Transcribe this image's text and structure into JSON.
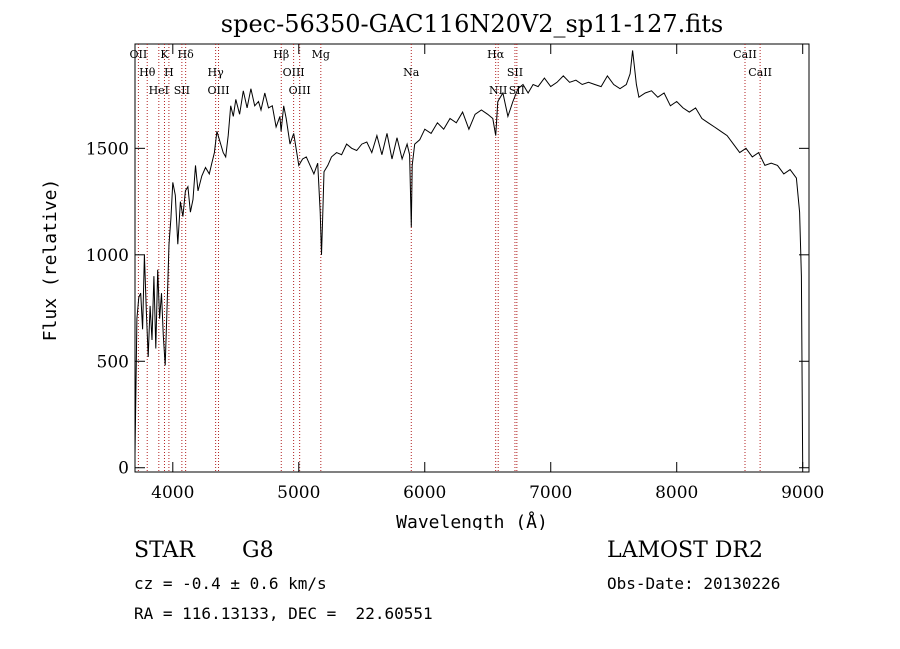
{
  "chart_data": {
    "type": "line",
    "title": "spec-56350-GAC116N20V2_sp11-127.fits",
    "xlabel": "Wavelength (Å)",
    "ylabel": "Flux (relative)",
    "xlim": [
      3700,
      9050
    ],
    "ylim": [
      -20,
      1990
    ],
    "x_ticks": [
      4000,
      5000,
      6000,
      7000,
      8000,
      9000
    ],
    "x_tick_labels": [
      "4000",
      "5000",
      "6000",
      "7000",
      "8000",
      "9000"
    ],
    "y_ticks": [
      0,
      500,
      1000,
      1500
    ],
    "y_tick_labels": [
      "0",
      "500",
      "1000",
      "1500"
    ],
    "grid": false,
    "line_color": "#000000",
    "marker_color": "#b22222",
    "series": [
      {
        "x": [
          3700,
          3715,
          3730,
          3745,
          3760,
          3775,
          3790,
          3805,
          3820,
          3835,
          3850,
          3865,
          3880,
          3895,
          3910,
          3925,
          3940,
          3955,
          3970,
          3985,
          4000,
          4020,
          4040,
          4060,
          4080,
          4100,
          4120,
          4140,
          4160,
          4180,
          4200,
          4230,
          4260,
          4290,
          4310,
          4330,
          4350,
          4380,
          4400,
          4420,
          4440,
          4460,
          4480,
          4500,
          4530,
          4560,
          4590,
          4620,
          4650,
          4680,
          4700,
          4730,
          4760,
          4790,
          4820,
          4850,
          4860,
          4880,
          4900,
          4930,
          4960,
          5000,
          5030,
          5060,
          5090,
          5120,
          5150,
          5170,
          5180,
          5190,
          5200,
          5230,
          5260,
          5300,
          5340,
          5380,
          5420,
          5460,
          5500,
          5540,
          5580,
          5620,
          5660,
          5700,
          5740,
          5780,
          5820,
          5860,
          5880,
          5893,
          5900,
          5920,
          5960,
          6000,
          6050,
          6100,
          6150,
          6200,
          6250,
          6300,
          6350,
          6400,
          6450,
          6500,
          6540,
          6563,
          6580,
          6620,
          6660,
          6700,
          6740,
          6780,
          6820,
          6860,
          6900,
          6950,
          7000,
          7050,
          7100,
          7150,
          7200,
          7250,
          7300,
          7350,
          7400,
          7450,
          7500,
          7550,
          7600,
          7630,
          7650,
          7680,
          7700,
          7750,
          7800,
          7850,
          7900,
          7950,
          8000,
          8050,
          8100,
          8150,
          8200,
          8250,
          8300,
          8350,
          8400,
          8450,
          8500,
          8550,
          8600,
          8650,
          8700,
          8750,
          8800,
          8850,
          8900,
          8950,
          8975,
          8990,
          9000
        ],
        "y": [
          60,
          700,
          800,
          820,
          650,
          1000,
          740,
          520,
          760,
          600,
          900,
          560,
          930,
          700,
          820,
          620,
          480,
          760,
          1050,
          1170,
          1340,
          1280,
          1050,
          1250,
          1180,
          1300,
          1320,
          1200,
          1260,
          1420,
          1300,
          1370,
          1410,
          1380,
          1430,
          1480,
          1580,
          1520,
          1480,
          1460,
          1560,
          1700,
          1650,
          1730,
          1660,
          1770,
          1690,
          1780,
          1700,
          1720,
          1680,
          1760,
          1690,
          1700,
          1600,
          1650,
          1580,
          1700,
          1640,
          1520,
          1570,
          1420,
          1450,
          1460,
          1420,
          1380,
          1430,
          1200,
          1000,
          1180,
          1390,
          1420,
          1460,
          1480,
          1470,
          1520,
          1500,
          1490,
          1520,
          1530,
          1480,
          1560,
          1470,
          1570,
          1450,
          1550,
          1450,
          1520,
          1470,
          1130,
          1420,
          1520,
          1540,
          1590,
          1570,
          1620,
          1590,
          1640,
          1620,
          1670,
          1590,
          1660,
          1680,
          1660,
          1640,
          1560,
          1720,
          1760,
          1650,
          1720,
          1780,
          1800,
          1760,
          1800,
          1790,
          1830,
          1790,
          1810,
          1840,
          1810,
          1820,
          1800,
          1810,
          1800,
          1790,
          1840,
          1800,
          1780,
          1800,
          1850,
          1960,
          1800,
          1740,
          1760,
          1770,
          1740,
          1760,
          1700,
          1720,
          1690,
          1670,
          1690,
          1640,
          1620,
          1600,
          1580,
          1560,
          1520,
          1480,
          1500,
          1460,
          1480,
          1420,
          1430,
          1420,
          1380,
          1400,
          1360,
          1200,
          900,
          0
        ]
      }
    ],
    "lines": [
      {
        "label": "OII",
        "x": 3727
      },
      {
        "label": "Hθ",
        "x": 3797
      },
      {
        "label": "HeI",
        "x": 3889
      },
      {
        "label": "K",
        "x": 3934
      },
      {
        "label": "H",
        "x": 3969
      },
      {
        "label": "SII",
        "x": 4072
      },
      {
        "label": "Hδ",
        "x": 4102
      },
      {
        "label": "Hγ",
        "x": 4340
      },
      {
        "label": "OIII",
        "x": 4363
      },
      {
        "label": "Hβ",
        "x": 4861
      },
      {
        "label": "OIII",
        "x": 4959
      },
      {
        "label": "OIII",
        "x": 5007
      },
      {
        "label": "Mg",
        "x": 5175
      },
      {
        "label": "Na",
        "x": 5893
      },
      {
        "label": "NII",
        "x": 6583
      },
      {
        "label": "Hα",
        "x": 6563
      },
      {
        "label": "SII",
        "x": 6716
      },
      {
        "label": "SII",
        "x": 6731
      },
      {
        "label": "CaII",
        "x": 8542
      },
      {
        "label": "CaII",
        "x": 8662
      }
    ]
  },
  "footer": {
    "class_label": "STAR",
    "subclass": "G8",
    "survey": "LAMOST DR2",
    "cz": "cz = -0.4 ± 0.6 km/s",
    "obs_date": "Obs-Date: 20130226",
    "radec": "RA = 116.13133, DEC =  22.60551"
  }
}
